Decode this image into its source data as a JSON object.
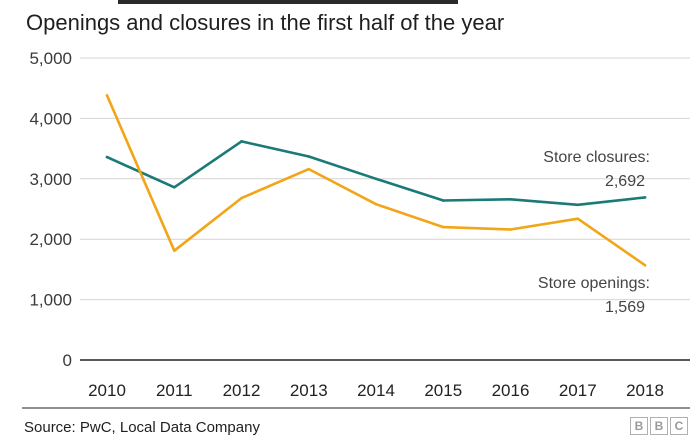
{
  "chart_data": {
    "type": "line",
    "subtitle": "Openings and closures in the first half of the year",
    "categories": [
      "2010",
      "2011",
      "2012",
      "2013",
      "2014",
      "2015",
      "2016",
      "2017",
      "2018"
    ],
    "ylim": [
      0,
      5000
    ],
    "yticks": [
      0,
      1000,
      2000,
      3000,
      4000,
      5000
    ],
    "ytick_labels": [
      "0",
      "1,000",
      "2,000",
      "3,000",
      "4,000",
      "5,000"
    ],
    "grid": true,
    "series": [
      {
        "name": "Store closures",
        "color": "#1a7a76",
        "values": [
          3360,
          2860,
          3620,
          3370,
          3000,
          2640,
          2660,
          2570,
          2692
        ],
        "label_line1": "Store closures:",
        "label_line2": "2,692"
      },
      {
        "name": "Store openings",
        "color": "#f2a516",
        "values": [
          4380,
          1810,
          2680,
          3160,
          2580,
          2200,
          2160,
          2340,
          1569
        ],
        "label_line1": "Store openings:",
        "label_line2": "1,569"
      }
    ],
    "source": "Source: PwC, Local Data Company"
  },
  "logo": {
    "letters": [
      "B",
      "B",
      "C"
    ]
  }
}
